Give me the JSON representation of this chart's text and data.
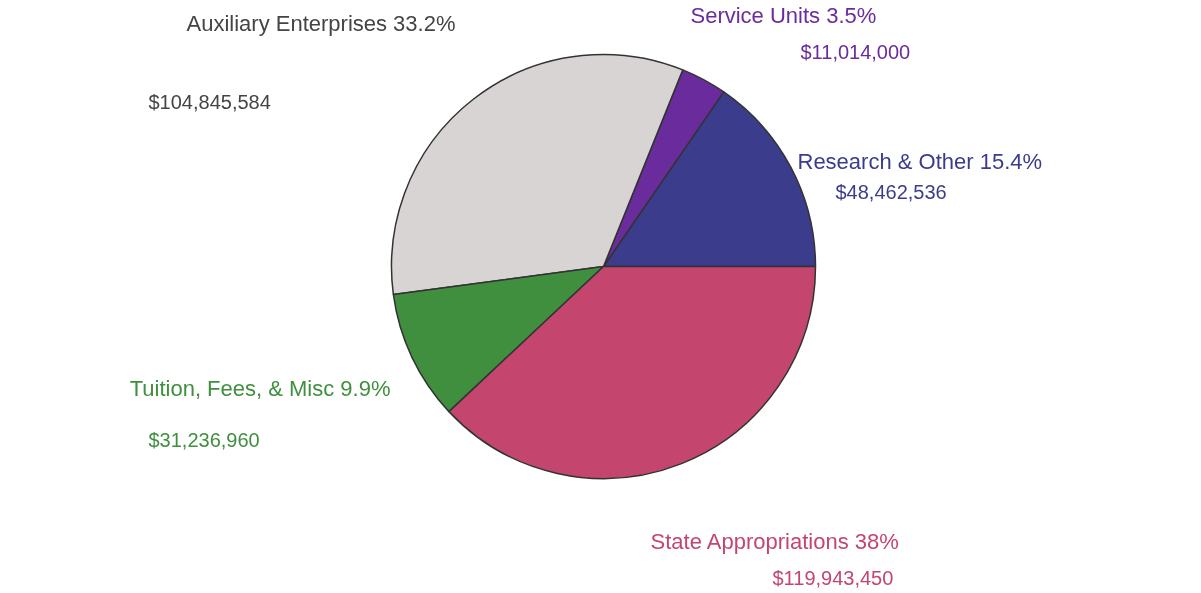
{
  "chart_data": {
    "type": "pie",
    "categories": [
      "Research & Other",
      "Service Units",
      "Auxiliary Enterprises",
      "Tuition, Fees, & Misc",
      "State Appropriations"
    ],
    "values": [
      15.4,
      3.5,
      33.2,
      9.9,
      38
    ],
    "colors": [
      "#3c3c8c",
      "#6a2c9c",
      "#d9d4d4",
      "#3f8f3f",
      "#c4456e"
    ],
    "value_labels": [
      "15.4%",
      "3.5%",
      "33.2%",
      "9.9%",
      "38%"
    ],
    "annotations": [
      "$48,462,536",
      "$11,014,000",
      "$104,845,584",
      "$31,236,960",
      "$119,943,450"
    ]
  }
}
